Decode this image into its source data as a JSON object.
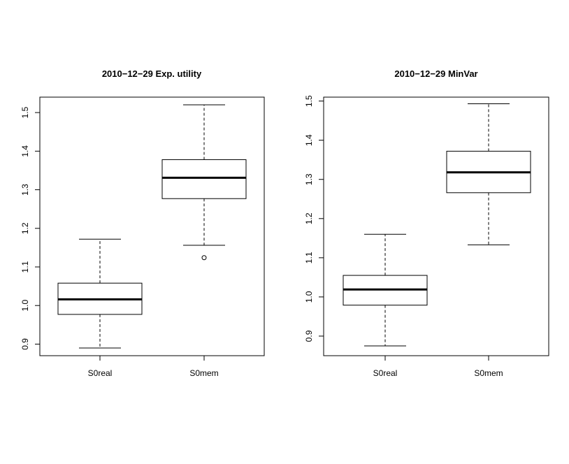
{
  "chart_data": [
    {
      "type": "boxplot",
      "title": "2010−12−29 Exp. utility",
      "categories": [
        "S0real",
        "S0mem"
      ],
      "ylim": [
        0.87,
        1.54
      ],
      "yticks": [
        "0.9",
        "1.0",
        "1.1",
        "1.2",
        "1.3",
        "1.4",
        "1.5"
      ],
      "boxes": [
        {
          "category": "S0real",
          "whisker_low": 0.89,
          "q1": 0.977,
          "median": 1.016,
          "q3": 1.058,
          "whisker_high": 1.172,
          "outliers": []
        },
        {
          "category": "S0mem",
          "whisker_low": 1.156,
          "q1": 1.277,
          "median": 1.331,
          "q3": 1.378,
          "whisker_high": 1.52,
          "outliers": [
            1.124
          ]
        }
      ]
    },
    {
      "type": "boxplot",
      "title": "2010−12−29 MinVar",
      "categories": [
        "S0real",
        "S0mem"
      ],
      "ylim": [
        0.85,
        1.51
      ],
      "yticks": [
        "0.9",
        "1.0",
        "1.1",
        "1.2",
        "1.3",
        "1.4",
        "1.5"
      ],
      "boxes": [
        {
          "category": "S0real",
          "whisker_low": 0.875,
          "q1": 0.979,
          "median": 1.019,
          "q3": 1.055,
          "whisker_high": 1.16,
          "outliers": []
        },
        {
          "category": "S0mem",
          "whisker_low": 1.133,
          "q1": 1.266,
          "median": 1.318,
          "q3": 1.372,
          "whisker_high": 1.493,
          "outliers": []
        }
      ]
    }
  ]
}
